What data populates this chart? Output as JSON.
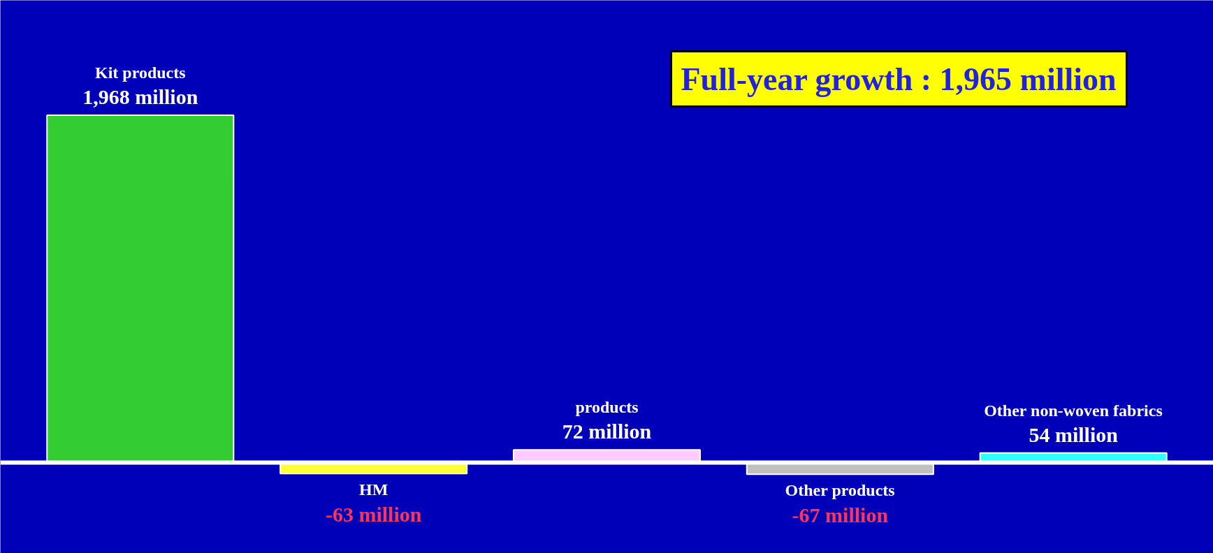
{
  "chart_data": {
    "type": "bar",
    "title": "Full-year growth : 1,965 million",
    "categories": [
      "Kit products",
      "HM",
      "products",
      "Other products",
      "Other non-woven fabrics"
    ],
    "values": [
      1968,
      -63,
      72,
      -67,
      54
    ],
    "value_labels": [
      "1,968 million",
      "-63 million",
      "72 million",
      "-67 million",
      "54 million"
    ],
    "colors": [
      "#33cc33",
      "#ffff33",
      "#ffccff",
      "#c0c0c0",
      "#33ffff"
    ],
    "grid": false
  }
}
